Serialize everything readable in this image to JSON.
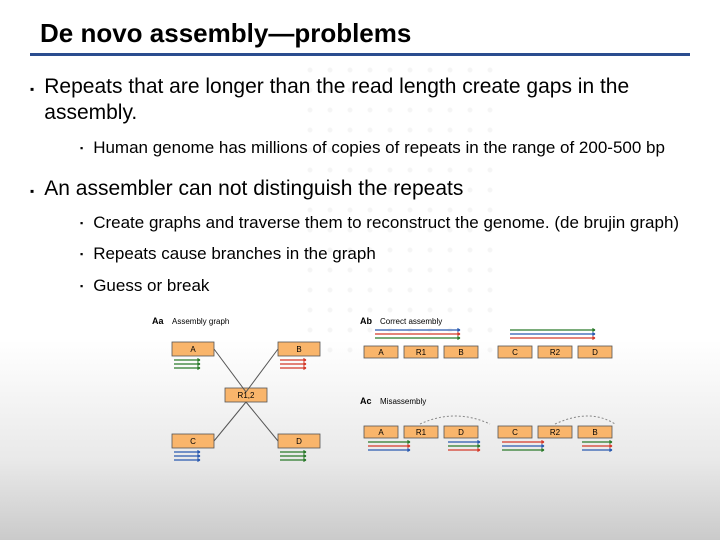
{
  "title": "De novo assembly—problems",
  "title_underline_color": "#2a4d8f",
  "bullet_marker": "▪",
  "bullets": [
    {
      "text": "Repeats that are longer than the read length create gaps in the assembly.",
      "children": [
        {
          "text": "Human genome has millions of copies of repeats in the range of 200-500 bp"
        }
      ]
    },
    {
      "text": "An assembler can not distinguish the repeats",
      "children": [
        {
          "text": "Create graphs and traverse them to reconstruct the genome. (de brujin graph)"
        },
        {
          "text": "Repeats cause branches in the graph"
        },
        {
          "text": "Guess or break"
        }
      ]
    }
  ],
  "diagram": {
    "colors": {
      "box_fill": "#f9b56b",
      "box_stroke": "#555555",
      "read_colors": [
        "#2a7a2a",
        "#d43a2a",
        "#2a5ab0"
      ],
      "edge_color": "#555555",
      "dashed_color": "#888888"
    },
    "label_Aa": "Aa",
    "title_Aa": "Assembly graph",
    "label_Ab": "Ab",
    "title_Ab": "Correct assembly",
    "label_Ac": "Ac",
    "title_Ac": "Misassembly",
    "nodes": {
      "A": "A",
      "B": "B",
      "C": "C",
      "D": "D",
      "R12": "R1,2",
      "R1": "R1",
      "R2": "R2"
    }
  }
}
